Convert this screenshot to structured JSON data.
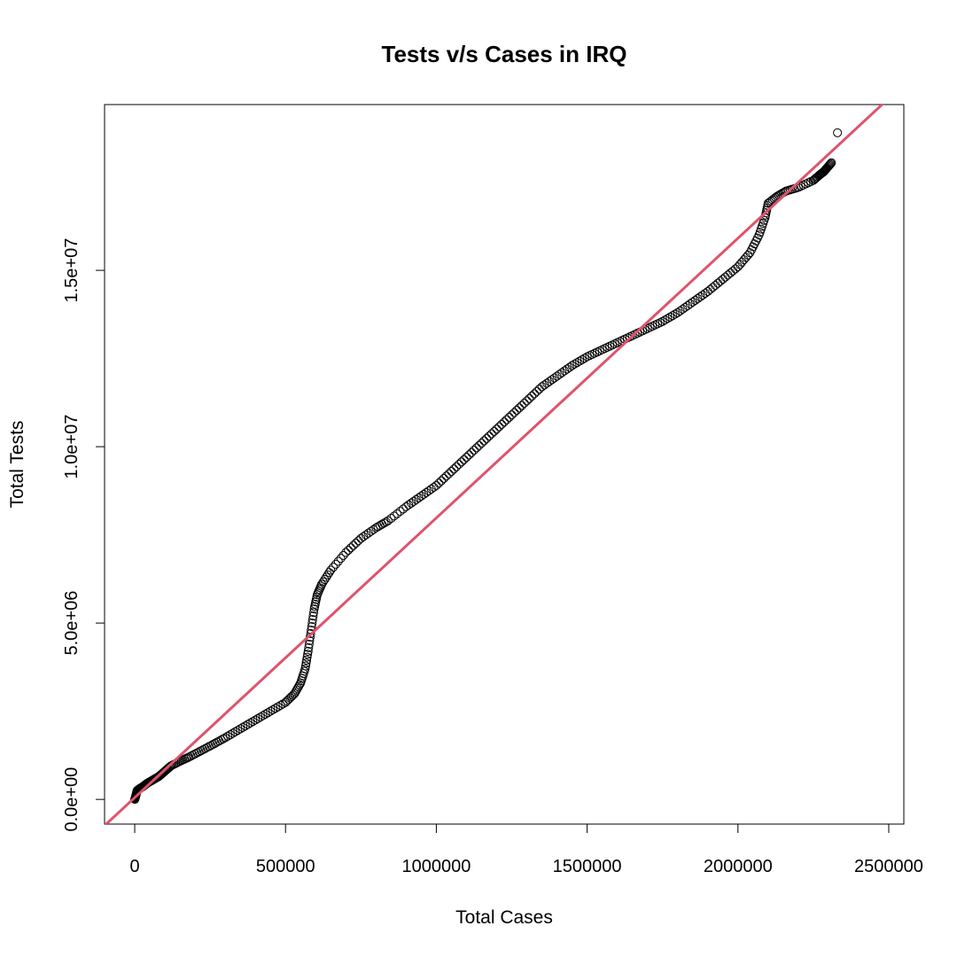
{
  "chart_data": {
    "type": "scatter",
    "title": "Tests v/s Cases in IRQ",
    "xlabel": "Total Cases",
    "ylabel": "Total Tests",
    "xlim": [
      -100000,
      2550000
    ],
    "ylim": [
      -700000,
      19700000
    ],
    "x_ticks": [
      0,
      500000,
      1000000,
      1500000,
      2000000,
      2500000
    ],
    "x_tick_labels": [
      "0",
      "500000",
      "1000000",
      "1500000",
      "2000000",
      "2500000"
    ],
    "y_ticks": [
      0,
      5000000,
      10000000,
      15000000
    ],
    "y_tick_labels": [
      "0.0e+00",
      "5.0e+06",
      "1.0e+07",
      "1.5e+07"
    ],
    "grid": false,
    "point_color": "#000000",
    "line_color": "#df536b",
    "regression_line": {
      "intercept": 50000,
      "slope": 7.93
    },
    "points": [
      [
        0,
        0
      ],
      [
        2000,
        50000
      ],
      [
        5000,
        150000
      ],
      [
        8000,
        250000
      ],
      [
        15000,
        300000
      ],
      [
        25000,
        350000
      ],
      [
        40000,
        450000
      ],
      [
        60000,
        550000
      ],
      [
        80000,
        650000
      ],
      [
        100000,
        800000
      ],
      [
        120000,
        950000
      ],
      [
        150000,
        1080000
      ],
      [
        180000,
        1200000
      ],
      [
        220000,
        1380000
      ],
      [
        260000,
        1560000
      ],
      [
        300000,
        1750000
      ],
      [
        350000,
        2000000
      ],
      [
        400000,
        2250000
      ],
      [
        450000,
        2500000
      ],
      [
        500000,
        2750000
      ],
      [
        530000,
        3000000
      ],
      [
        550000,
        3300000
      ],
      [
        565000,
        3700000
      ],
      [
        575000,
        4200000
      ],
      [
        585000,
        4800000
      ],
      [
        595000,
        5400000
      ],
      [
        605000,
        5800000
      ],
      [
        620000,
        6100000
      ],
      [
        650000,
        6500000
      ],
      [
        700000,
        7000000
      ],
      [
        750000,
        7400000
      ],
      [
        800000,
        7700000
      ],
      [
        840000,
        7900000
      ],
      [
        900000,
        8300000
      ],
      [
        950000,
        8600000
      ],
      [
        1000000,
        8900000
      ],
      [
        1050000,
        9300000
      ],
      [
        1100000,
        9700000
      ],
      [
        1150000,
        10100000
      ],
      [
        1200000,
        10500000
      ],
      [
        1250000,
        10900000
      ],
      [
        1300000,
        11300000
      ],
      [
        1350000,
        11700000
      ],
      [
        1400000,
        12000000
      ],
      [
        1450000,
        12300000
      ],
      [
        1500000,
        12550000
      ],
      [
        1550000,
        12750000
      ],
      [
        1600000,
        12950000
      ],
      [
        1650000,
        13150000
      ],
      [
        1700000,
        13350000
      ],
      [
        1750000,
        13550000
      ],
      [
        1800000,
        13800000
      ],
      [
        1850000,
        14100000
      ],
      [
        1900000,
        14400000
      ],
      [
        1950000,
        14750000
      ],
      [
        2000000,
        15100000
      ],
      [
        2040000,
        15500000
      ],
      [
        2070000,
        16000000
      ],
      [
        2090000,
        16500000
      ],
      [
        2100000,
        16900000
      ],
      [
        2130000,
        17100000
      ],
      [
        2160000,
        17250000
      ],
      [
        2200000,
        17350000
      ],
      [
        2250000,
        17550000
      ],
      [
        2270000,
        17700000
      ],
      [
        2285000,
        17800000
      ],
      [
        2295000,
        17900000
      ],
      [
        2310000,
        18050000
      ],
      [
        2330000,
        18900000
      ]
    ]
  }
}
